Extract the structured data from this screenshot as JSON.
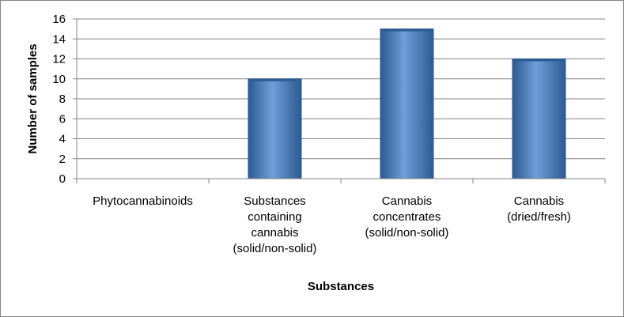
{
  "chart_data": {
    "type": "bar",
    "title": "",
    "xlabel": "Substances",
    "ylabel": "Number of samples",
    "categories": [
      [
        "Phytocannabinoids"
      ],
      [
        "Substances",
        "containing",
        "cannabis",
        "(solid/non-solid)"
      ],
      [
        "Cannabis",
        "concentrates",
        "(solid/non-solid)"
      ],
      [
        "Cannabis",
        "(dried/fresh)"
      ]
    ],
    "values": [
      0,
      10,
      15,
      12
    ],
    "ylim": [
      0,
      16
    ],
    "yticks": [
      0,
      2,
      4,
      6,
      8,
      10,
      12,
      14,
      16
    ],
    "grid": true,
    "legend": "none",
    "colors": {
      "bar_fill": "#4f81bd",
      "bar_dark": "#2c5a93",
      "bar_light": "#6f9fd8",
      "grid": "#868686",
      "border": "#868686"
    }
  }
}
